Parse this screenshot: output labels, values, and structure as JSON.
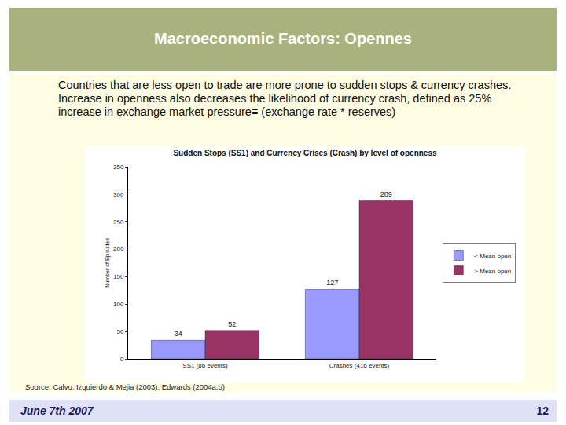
{
  "slide": {
    "title": "Macroeconomic Factors: Opennes",
    "text": "Countries that are less open to trade are more prone to sudden stops & currency crashes. Increase in openness also decreases the likelihood of currency crash, defined as 25% increase in exchange market pressure≡ (exchange rate * reserves)",
    "source": "Source: Calvo, Izquierdo & Mejia (2003); Edwards (2004a,b)",
    "date": "June 7th 2007",
    "page": "12"
  },
  "chart_data": {
    "type": "bar",
    "title": "Sudden Stops (SS1) and Currency Crises (Crash) by level of openness",
    "y_label": "Number of Episodes",
    "categories": [
      "SS1 (86 events)",
      "Crashes (416 events)"
    ],
    "series": [
      {
        "name": "< Mean open",
        "color": "#9999ff",
        "values": [
          34,
          127
        ]
      },
      {
        "name": "> Mean open",
        "color": "#993366",
        "values": [
          52,
          289
        ]
      }
    ],
    "ylim": [
      0,
      350
    ],
    "yticks": [
      0,
      50,
      100,
      150,
      200,
      250,
      300,
      350
    ],
    "grid": false,
    "legend": "right",
    "data_labels": true
  }
}
